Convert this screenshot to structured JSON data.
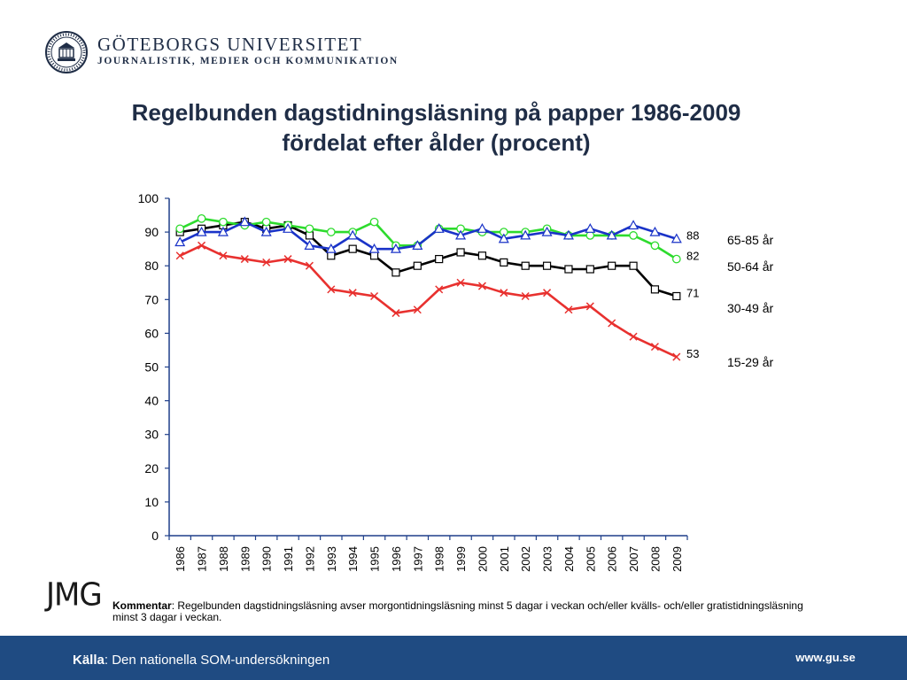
{
  "header": {
    "university": "GÖTEBORGS UNIVERSITET",
    "department": "JOURNALISTIK, MEDIER OCH KOMMUNIKATION"
  },
  "logo_text": "JMG",
  "chart_data": {
    "type": "line",
    "title_line1": "Regelbunden dagstidningsläsning på papper 1986-2009",
    "title_line2": "fördelat efter ålder (procent)",
    "xlabel": "",
    "ylabel": "",
    "ylim": [
      0,
      100
    ],
    "yticks": [
      0,
      10,
      20,
      30,
      40,
      50,
      60,
      70,
      80,
      90,
      100
    ],
    "grid": false,
    "legend": "right",
    "x": [
      1986,
      1987,
      1988,
      1989,
      1990,
      1991,
      1992,
      1993,
      1994,
      1995,
      1996,
      1997,
      1998,
      1999,
      2000,
      2001,
      2002,
      2003,
      2004,
      2005,
      2006,
      2007,
      2008,
      2009
    ],
    "series": [
      {
        "name": "15-29 år",
        "marker": "x",
        "color": "#e8312f",
        "values": [
          83,
          86,
          83,
          82,
          81,
          82,
          80,
          73,
          72,
          71,
          66,
          67,
          73,
          75,
          74,
          72,
          71,
          72,
          67,
          68,
          63,
          59,
          56,
          53
        ],
        "end_label": "53"
      },
      {
        "name": "30-49 år",
        "marker": "square",
        "color": "#000000",
        "values": [
          90,
          91,
          92,
          93,
          91,
          92,
          89,
          83,
          85,
          83,
          78,
          80,
          82,
          84,
          83,
          81,
          80,
          80,
          79,
          79,
          80,
          80,
          73,
          71
        ],
        "end_label": "71"
      },
      {
        "name": "50-64 år",
        "marker": "circle",
        "color": "#2ddb2d",
        "values": [
          91,
          94,
          93,
          92,
          93,
          92,
          91,
          90,
          90,
          93,
          86,
          86,
          91,
          91,
          90,
          90,
          90,
          91,
          89,
          89,
          89,
          89,
          86,
          82
        ],
        "end_label": "82"
      },
      {
        "name": "65-85 år",
        "marker": "triangle",
        "color": "#1a33c8",
        "values": [
          87,
          90,
          90,
          93,
          90,
          91,
          86,
          85,
          89,
          85,
          85,
          86,
          91,
          89,
          91,
          88,
          89,
          90,
          89,
          91,
          89,
          92,
          90,
          88
        ],
        "end_label": "88"
      }
    ]
  },
  "comment": {
    "label": "Kommentar",
    "text": ": Regelbunden dagstidningsläsning avser morgontidningsläsning minst 5 dagar i veckan och/eller kvälls- och/eller gratistidningsläsning minst 3 dagar i veckan."
  },
  "footer": {
    "source_label": "Källa",
    "source_text": ": Den nationella SOM-undersökningen",
    "url": "www.gu.se"
  }
}
